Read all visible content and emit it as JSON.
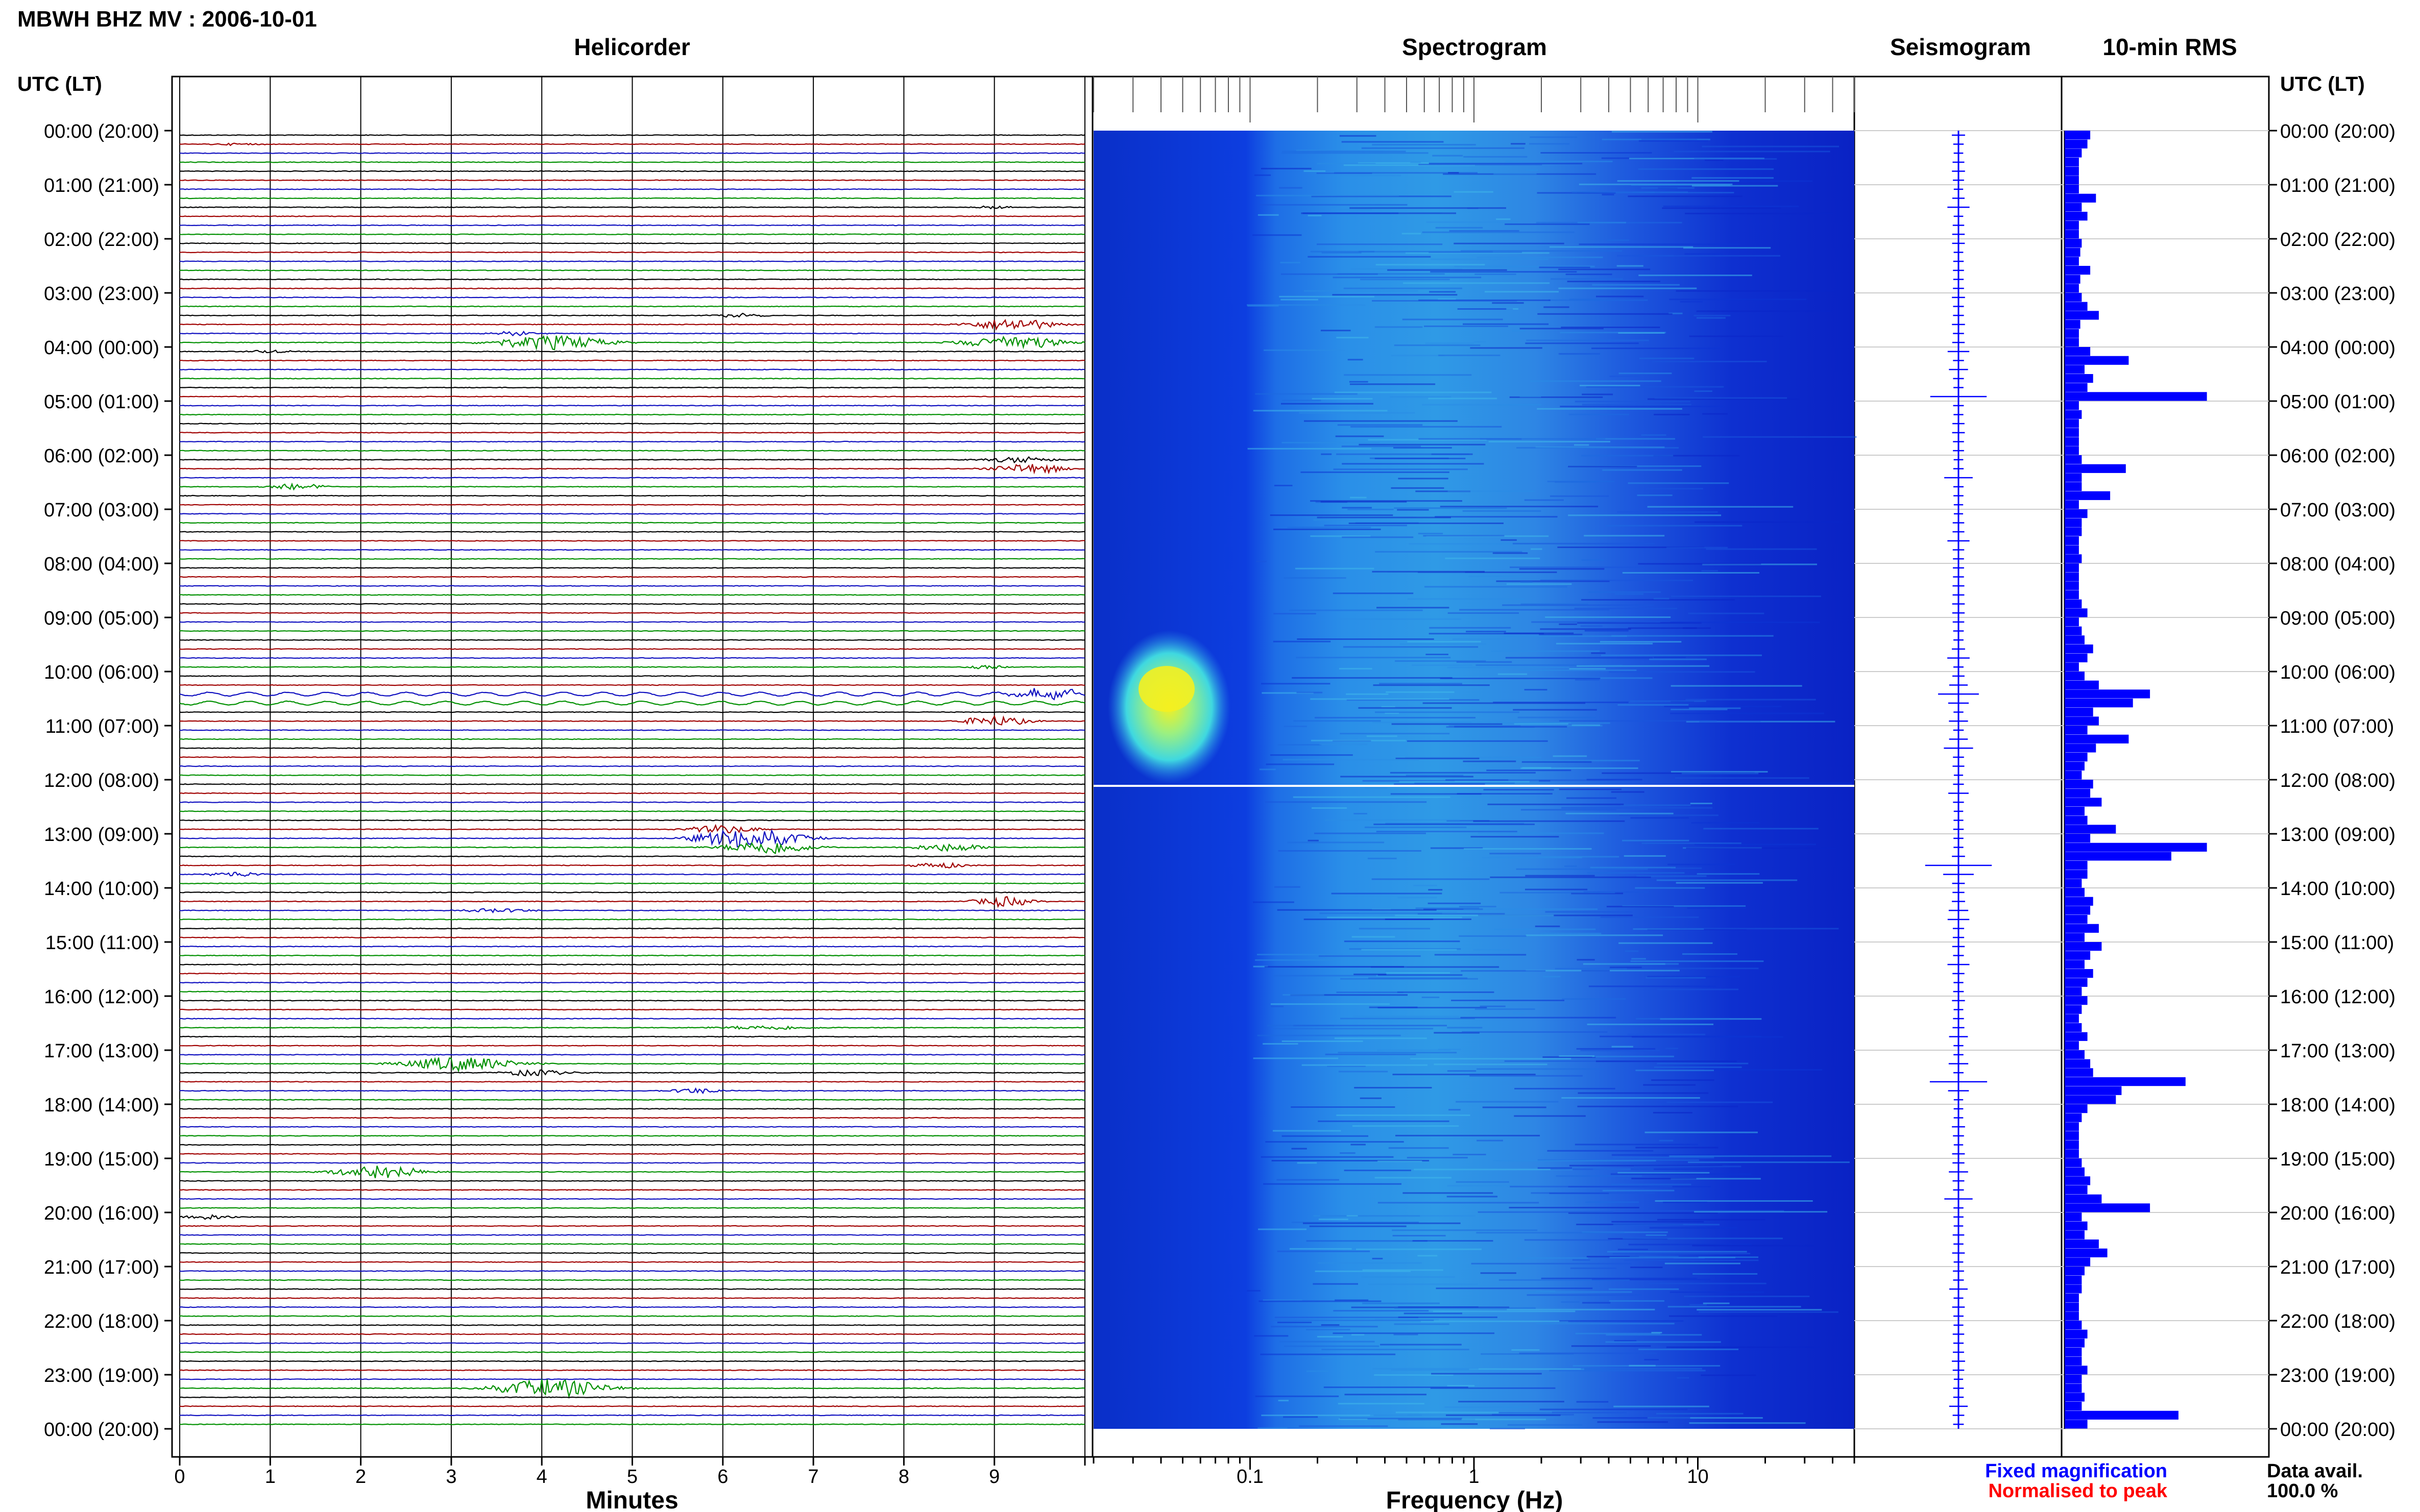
{
  "title": "MBWH BHZ MV : 2006-10-01",
  "panels": {
    "helicorder": "Helicorder",
    "spectrogram": "Spectrogram",
    "seismogram": "Seismogram",
    "rms": "10-min RMS"
  },
  "axis_label_left": "UTC (LT)",
  "axis_label_right": "UTC (LT)",
  "time_labels": [
    "00:00 (20:00)",
    "01:00 (21:00)",
    "02:00 (22:00)",
    "03:00 (23:00)",
    "04:00 (00:00)",
    "05:00 (01:00)",
    "06:00 (02:00)",
    "07:00 (03:00)",
    "08:00 (04:00)",
    "09:00 (05:00)",
    "10:00 (06:00)",
    "11:00 (07:00)",
    "12:00 (08:00)",
    "13:00 (09:00)",
    "14:00 (10:00)",
    "15:00 (11:00)",
    "16:00 (12:00)",
    "17:00 (13:00)",
    "18:00 (14:00)",
    "19:00 (15:00)",
    "20:00 (16:00)",
    "21:00 (17:00)",
    "22:00 (18:00)",
    "23:00 (19:00)",
    "00:00 (20:00)"
  ],
  "minutes_axis": {
    "label": "Minutes",
    "ticks": [
      "0",
      "1",
      "2",
      "3",
      "4",
      "5",
      "6",
      "7",
      "8",
      "9"
    ]
  },
  "frequency_axis": {
    "label": "Frequency (Hz)",
    "ticks": [
      "0.1",
      "1",
      "10"
    ]
  },
  "legend": {
    "fixed": "Fixed magnification",
    "normalised": "Normalised to peak",
    "fixed_color": "#0000ff",
    "normalised_color": "#ff0000"
  },
  "data_avail": {
    "label": "Data avail.",
    "value": "100.0 %"
  },
  "colors": {
    "black": "#000000",
    "red": "#a00000",
    "blue": "#1010c0",
    "green": "#009000",
    "spectro_base": "#0d2fd8",
    "rms_bar": "#0000ff"
  },
  "chart_data": [
    {
      "type": "line",
      "name": "helicorder",
      "xlabel": "Minutes",
      "xlim": [
        0,
        10
      ],
      "trace_minutes": 10,
      "traces_per_hour": 6,
      "hours": 24,
      "color_cycle": [
        "black",
        "red",
        "blue",
        "green"
      ],
      "events": [
        {
          "trace": 1,
          "minute": 0.6,
          "amp": 2,
          "dur": 0.8
        },
        {
          "trace": 8,
          "minute": 9.0,
          "amp": 3,
          "dur": 0.5
        },
        {
          "trace": 20,
          "minute": 6.2,
          "amp": 4,
          "dur": 0.8
        },
        {
          "trace": 21,
          "minute": 9.2,
          "amp": 12,
          "dur": 1.2
        },
        {
          "trace": 22,
          "minute": 3.7,
          "amp": 4,
          "dur": 0.8
        },
        {
          "trace": 23,
          "minute": 4.1,
          "amp": 14,
          "dur": 1.6
        },
        {
          "trace": 23,
          "minute": 9.2,
          "amp": 14,
          "dur": 1.4
        },
        {
          "trace": 24,
          "minute": 1.0,
          "amp": 3,
          "dur": 0.6
        },
        {
          "trace": 36,
          "minute": 9.3,
          "amp": 6,
          "dur": 1.0
        },
        {
          "trace": 37,
          "minute": 9.4,
          "amp": 10,
          "dur": 1.0
        },
        {
          "trace": 39,
          "minute": 1.3,
          "amp": 6,
          "dur": 0.8
        },
        {
          "trace": 59,
          "minute": 8.9,
          "amp": 4,
          "dur": 0.6
        },
        {
          "trace": 62,
          "minute": 9.6,
          "amp": 10,
          "dur": 1.0
        },
        {
          "trace": 65,
          "minute": 9.0,
          "amp": 10,
          "dur": 1.0
        },
        {
          "trace": 77,
          "minute": 6.0,
          "amp": 8,
          "dur": 1.0
        },
        {
          "trace": 78,
          "minute": 6.3,
          "amp": 20,
          "dur": 1.5
        },
        {
          "trace": 79,
          "minute": 6.5,
          "amp": 14,
          "dur": 1.2
        },
        {
          "trace": 79,
          "minute": 8.5,
          "amp": 8,
          "dur": 1.0
        },
        {
          "trace": 81,
          "minute": 8.4,
          "amp": 6,
          "dur": 0.8
        },
        {
          "trace": 82,
          "minute": 0.6,
          "amp": 5,
          "dur": 0.8
        },
        {
          "trace": 85,
          "minute": 9.1,
          "amp": 10,
          "dur": 0.8
        },
        {
          "trace": 86,
          "minute": 3.5,
          "amp": 4,
          "dur": 1.0
        },
        {
          "trace": 99,
          "minute": 6.5,
          "amp": 4,
          "dur": 1.4
        },
        {
          "trace": 103,
          "minute": 3.1,
          "amp": 14,
          "dur": 1.6
        },
        {
          "trace": 104,
          "minute": 3.9,
          "amp": 6,
          "dur": 1.0
        },
        {
          "trace": 106,
          "minute": 5.7,
          "amp": 5,
          "dur": 0.8
        },
        {
          "trace": 115,
          "minute": 2.2,
          "amp": 14,
          "dur": 1.2
        },
        {
          "trace": 120,
          "minute": 0.3,
          "amp": 5,
          "dur": 0.8
        },
        {
          "trace": 139,
          "minute": 4.1,
          "amp": 18,
          "dur": 1.6
        }
      ],
      "sinusoid_traces": [
        62,
        63
      ]
    },
    {
      "type": "heatmap",
      "name": "spectrogram",
      "xlabel": "Frequency (Hz)",
      "x_scale": "log",
      "xlim": [
        0.02,
        50
      ],
      "colormap": [
        "#0a1a9a",
        "#0d2fd8",
        "#2aa0e8",
        "#5ee8d8",
        "#f0f020"
      ],
      "hotspot": {
        "hours": [
          10.0,
          11.0
        ],
        "freq_hz": [
          0.03,
          0.08
        ],
        "level": "max"
      }
    },
    {
      "type": "line",
      "name": "seismogram",
      "samples_per_hour": 6,
      "amplitude": [
        1,
        1,
        1,
        1,
        1,
        1,
        1,
        1,
        2,
        1,
        1,
        1,
        1,
        1,
        1,
        1,
        1,
        1,
        1,
        1,
        1,
        1,
        1,
        1,
        2,
        1,
        2,
        1,
        1,
        6,
        1,
        1,
        1,
        1,
        1,
        1,
        1,
        1,
        3,
        1,
        1,
        1,
        1,
        1,
        1,
        2,
        1,
        1,
        1,
        1,
        1,
        1,
        1,
        1,
        1,
        1,
        1,
        1,
        2,
        1,
        1,
        2,
        4,
        2,
        1,
        2,
        1,
        2,
        3,
        1,
        1,
        1,
        1,
        2,
        1,
        1,
        1,
        1,
        1,
        1,
        1,
        7,
        3,
        1,
        1,
        1,
        2,
        2,
        1,
        1,
        1,
        1,
        2,
        1,
        1,
        1,
        1,
        1,
        1,
        1,
        2,
        1,
        1,
        2,
        1,
        6,
        2,
        1,
        1,
        1,
        1,
        1,
        1,
        1,
        1,
        2,
        1,
        1,
        3,
        1,
        1,
        1,
        1,
        1,
        1,
        1,
        1,
        1,
        2,
        1,
        1,
        1,
        1,
        1,
        1,
        1,
        1,
        1,
        1,
        1,
        1,
        2,
        1,
        1
      ]
    },
    {
      "type": "bar",
      "name": "10-min RMS",
      "orientation": "horizontal",
      "samples_per_hour": 6,
      "values": [
        1.8,
        1.6,
        1.2,
        1.0,
        1.0,
        1.0,
        1.0,
        2.2,
        1.2,
        1.6,
        1.0,
        1.0,
        1.2,
        1.1,
        1.0,
        1.8,
        1.1,
        1.0,
        1.2,
        1.6,
        2.4,
        1.1,
        1.0,
        1.0,
        1.8,
        4.5,
        1.4,
        2.0,
        1.6,
        10.0,
        1.0,
        1.2,
        1.0,
        1.0,
        1.0,
        1.0,
        1.2,
        4.3,
        1.2,
        1.2,
        3.2,
        1.0,
        1.6,
        1.2,
        1.2,
        1.0,
        1.0,
        1.2,
        1.0,
        1.0,
        1.0,
        1.0,
        1.2,
        1.6,
        1.0,
        1.2,
        1.4,
        2.0,
        1.6,
        1.0,
        1.4,
        2.4,
        6.0,
        4.8,
        2.0,
        2.4,
        1.6,
        4.5,
        2.2,
        1.6,
        1.4,
        1.2,
        2.0,
        1.8,
        2.6,
        1.4,
        1.6,
        3.6,
        1.8,
        10.0,
        7.5,
        1.6,
        1.6,
        1.2,
        1.4,
        2.0,
        1.8,
        1.6,
        2.4,
        1.4,
        2.6,
        1.8,
        1.4,
        2.0,
        1.6,
        1.2,
        1.6,
        1.2,
        1.0,
        1.2,
        1.6,
        1.0,
        1.4,
        1.8,
        2.0,
        8.5,
        4.0,
        3.6,
        1.6,
        1.2,
        1.0,
        1.0,
        1.0,
        1.0,
        1.2,
        1.4,
        1.8,
        1.6,
        2.6,
        6.0,
        1.2,
        1.6,
        1.4,
        2.4,
        3.0,
        1.8,
        1.4,
        1.2,
        1.2,
        1.0,
        1.0,
        1.0,
        1.2,
        1.6,
        1.4,
        1.2,
        1.2,
        1.6,
        1.2,
        1.2,
        1.4,
        1.2,
        8.0,
        1.6
      ]
    }
  ]
}
